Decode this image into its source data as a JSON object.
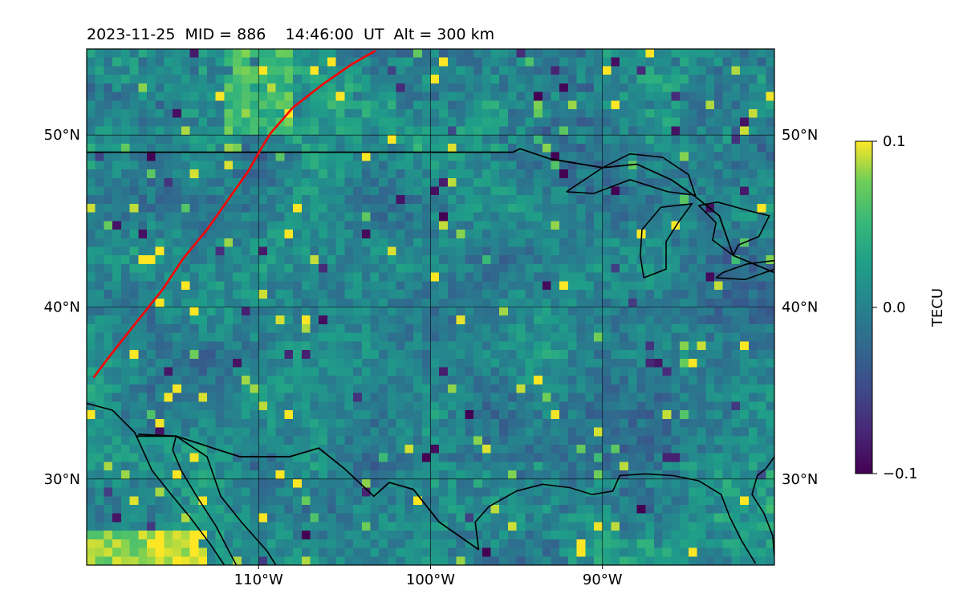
{
  "chart_data": {
    "type": "heatmap",
    "title": "2023-11-25  MID = 886    14:46:00  UT  Alt = 300 km",
    "projection": "lon-lat (plate carrée)",
    "xlim": [
      -120,
      -80
    ],
    "ylim": [
      25,
      55
    ],
    "x_ticks": [
      -110,
      -100,
      -90
    ],
    "x_tick_labels": [
      "110°W",
      "100°W",
      "90°W"
    ],
    "y_ticks": [
      30,
      40,
      50
    ],
    "y_tick_labels": [
      "30°N",
      "40°N",
      "50°N"
    ],
    "grid": true,
    "colorbar": {
      "label": "TECU",
      "vmin": -0.1,
      "vmax": 0.1,
      "tick_values": [
        0.1,
        0.0,
        -0.1
      ],
      "tick_labels": [
        "0.1",
        "0.0",
        "−0.1"
      ],
      "colormap": "viridis",
      "position": "right"
    },
    "field_resolution_deg": 0.5,
    "track": {
      "color": "#ff0000",
      "lon": [
        -119.6,
        -118.7,
        -117.2,
        -115.6,
        -114.4,
        -113.0,
        -111.8,
        -110.6,
        -109.8,
        -109.3,
        -108.0,
        -106.2,
        -104.6,
        -103.2
      ],
      "lat": [
        35.9,
        37.1,
        39.0,
        41.0,
        42.8,
        44.5,
        46.2,
        47.9,
        49.3,
        50.1,
        51.6,
        53.0,
        54.1,
        54.9
      ]
    },
    "coastlines": [
      [
        [
          -120,
          34.4
        ],
        [
          -118.5,
          34.0
        ],
        [
          -117.2,
          32.7
        ],
        [
          -116.2,
          30.5
        ],
        [
          -115.0,
          29.0
        ],
        [
          -114.0,
          27.8
        ],
        [
          -112.8,
          26.2
        ],
        [
          -112.0,
          25.0
        ]
      ],
      [
        [
          -117.0,
          32.6
        ],
        [
          -114.8,
          32.5
        ],
        [
          -113.0,
          31.3
        ],
        [
          -112.2,
          29.0
        ],
        [
          -111.0,
          27.5
        ],
        [
          -109.5,
          25.8
        ],
        [
          -109.0,
          25.0
        ]
      ],
      [
        [
          -114.8,
          32.5
        ],
        [
          -115.0,
          31.7
        ],
        [
          -114.5,
          30.5
        ],
        [
          -113.6,
          29.0
        ],
        [
          -112.5,
          27.3
        ],
        [
          -111.3,
          25.0
        ]
      ],
      [
        [
          -97.2,
          25.9
        ],
        [
          -97.4,
          27.5
        ],
        [
          -96.6,
          28.4
        ],
        [
          -95.0,
          29.3
        ],
        [
          -93.5,
          29.7
        ],
        [
          -91.9,
          29.5
        ],
        [
          -90.6,
          29.1
        ],
        [
          -89.4,
          29.3
        ],
        [
          -89.0,
          30.2
        ],
        [
          -87.5,
          30.3
        ],
        [
          -85.9,
          30.2
        ],
        [
          -84.4,
          29.9
        ],
        [
          -83.1,
          29.1
        ],
        [
          -82.6,
          27.8
        ],
        [
          -81.9,
          26.4
        ],
        [
          -81.1,
          25.1
        ]
      ],
      [
        [
          -80.0,
          31.3
        ],
        [
          -80.5,
          30.6
        ],
        [
          -81.0,
          30.2
        ],
        [
          -81.3,
          29.1
        ],
        [
          -80.6,
          28.0
        ],
        [
          -80.1,
          26.7
        ],
        [
          -80.0,
          25.5
        ]
      ]
    ],
    "borders": [
      [
        [
          -120,
          49.0
        ],
        [
          -95.2,
          49.0
        ],
        [
          -94.8,
          49.2
        ],
        [
          -93.0,
          48.6
        ],
        [
          -90.0,
          48.1
        ],
        [
          -88.0,
          48.3
        ],
        [
          -86.0,
          47.4
        ],
        [
          -84.7,
          46.5
        ],
        [
          -83.2,
          45.3
        ],
        [
          -82.4,
          43.0
        ],
        [
          -80.0,
          42.0
        ]
      ],
      [
        [
          -117.1,
          32.5
        ],
        [
          -114.8,
          32.5
        ],
        [
          -111.1,
          31.3
        ],
        [
          -108.2,
          31.3
        ],
        [
          -106.5,
          31.8
        ],
        [
          -105.0,
          30.6
        ],
        [
          -103.3,
          29.0
        ],
        [
          -102.4,
          29.8
        ],
        [
          -101.0,
          29.4
        ],
        [
          -99.5,
          27.5
        ],
        [
          -97.2,
          25.9
        ]
      ]
    ],
    "lakes": [
      [
        [
          -92.1,
          46.7
        ],
        [
          -90.5,
          46.6
        ],
        [
          -88.4,
          47.4
        ],
        [
          -86.2,
          46.7
        ],
        [
          -84.6,
          46.5
        ],
        [
          -85.0,
          47.7
        ],
        [
          -86.5,
          48.7
        ],
        [
          -88.4,
          48.9
        ],
        [
          -90.0,
          48.1
        ],
        [
          -92.1,
          46.7
        ]
      ],
      [
        [
          -87.6,
          41.7
        ],
        [
          -87.8,
          43.0
        ],
        [
          -87.7,
          44.5
        ],
        [
          -86.6,
          45.8
        ],
        [
          -84.8,
          46.0
        ],
        [
          -85.6,
          44.9
        ],
        [
          -86.3,
          43.8
        ],
        [
          -86.3,
          42.2
        ],
        [
          -87.6,
          41.7
        ]
      ],
      [
        [
          -84.4,
          45.9
        ],
        [
          -83.3,
          46.1
        ],
        [
          -81.5,
          45.6
        ],
        [
          -80.3,
          45.3
        ],
        [
          -80.9,
          44.1
        ],
        [
          -82.1,
          43.6
        ],
        [
          -82.4,
          43.0
        ],
        [
          -83.6,
          43.9
        ],
        [
          -83.4,
          44.9
        ],
        [
          -84.4,
          45.9
        ]
      ],
      [
        [
          -83.4,
          41.7
        ],
        [
          -81.7,
          41.6
        ],
        [
          -80.0,
          42.2
        ],
        [
          -80.0,
          42.7
        ],
        [
          -81.6,
          42.5
        ],
        [
          -83.0,
          42.0
        ],
        [
          -83.4,
          41.7
        ]
      ]
    ]
  }
}
